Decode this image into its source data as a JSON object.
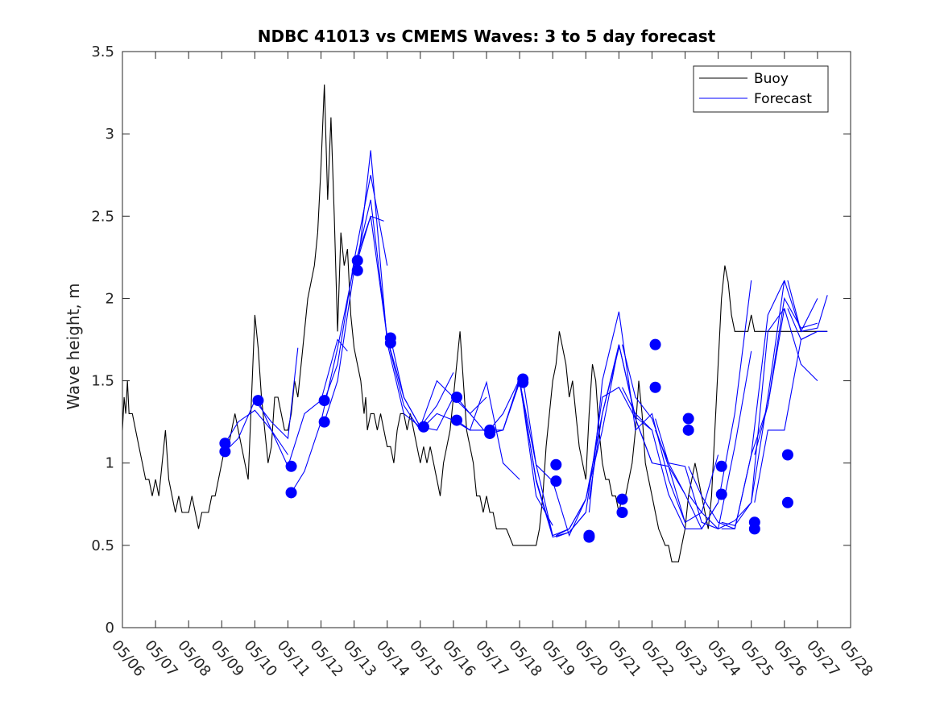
{
  "chart_data": {
    "type": "line",
    "title": "NDBC 41013 vs CMEMS Waves: 3 to 5 day forecast",
    "xlabel": "",
    "ylabel": "Wave height, m",
    "xlim": [
      0,
      22
    ],
    "ylim": [
      0,
      3.5
    ],
    "yticks": [
      0,
      0.5,
      1,
      1.5,
      2,
      2.5,
      3,
      3.5
    ],
    "ytick_labels": [
      "0",
      "0.5",
      "1",
      "1.5",
      "2",
      "2.5",
      "3",
      "3.5"
    ],
    "xtick_labels": [
      "05/06",
      "05/07",
      "05/08",
      "05/09",
      "05/10",
      "05/11",
      "05/12",
      "05/13",
      "05/14",
      "05/15",
      "05/16",
      "05/17",
      "05/18",
      "05/19",
      "05/20",
      "05/21",
      "05/22",
      "05/23",
      "05/24",
      "05/25",
      "05/26",
      "05/27",
      "05/28"
    ],
    "legend": {
      "placement": "top-right",
      "entries": [
        {
          "label": "Buoy",
          "color": "#000000"
        },
        {
          "label": "Forecast",
          "color": "#0000ff"
        }
      ]
    },
    "colors": {
      "buoy": "#000000",
      "forecast": "#0000ff",
      "marker": "#0000ff"
    },
    "series": [
      {
        "name": "Buoy",
        "x": [
          0,
          0.05,
          0.1,
          0.15,
          0.2,
          0.3,
          0.4,
          0.5,
          0.6,
          0.7,
          0.8,
          0.9,
          1.0,
          1.1,
          1.2,
          1.3,
          1.4,
          1.5,
          1.6,
          1.7,
          1.8,
          1.9,
          2.0,
          2.1,
          2.2,
          2.3,
          2.4,
          2.5,
          2.6,
          2.7,
          2.8,
          2.9,
          3.0,
          3.1,
          3.2,
          3.3,
          3.4,
          3.5,
          3.6,
          3.7,
          3.8,
          3.9,
          4.0,
          4.1,
          4.2,
          4.3,
          4.4,
          4.5,
          4.6,
          4.7,
          4.8,
          4.9,
          5.0,
          5.1,
          5.2,
          5.3,
          5.4,
          5.5,
          5.6,
          5.7,
          5.8,
          5.9,
          6.0,
          6.1,
          6.2,
          6.3,
          6.4,
          6.5,
          6.6,
          6.7,
          6.8,
          6.9,
          7.0,
          7.1,
          7.2,
          7.25,
          7.3,
          7.35,
          7.4,
          7.5,
          7.6,
          7.7,
          7.8,
          7.9,
          8.0,
          8.1,
          8.2,
          8.3,
          8.4,
          8.5,
          8.6,
          8.7,
          8.8,
          8.9,
          9.0,
          9.1,
          9.2,
          9.3,
          9.4,
          9.5,
          9.6,
          9.7,
          9.8,
          9.9,
          10.0,
          10.1,
          10.2,
          10.3,
          10.4,
          10.5,
          10.6,
          10.7,
          10.8,
          10.9,
          11.0,
          11.1,
          11.2,
          11.3,
          11.4,
          11.5,
          11.6,
          11.7,
          11.8,
          11.9,
          12.0,
          12.1,
          12.2,
          12.3,
          12.4,
          12.5,
          12.6,
          12.7,
          12.8,
          12.9,
          13.0,
          13.1,
          13.2,
          13.3,
          13.4,
          13.5,
          13.6,
          13.7,
          13.8,
          13.9,
          14.0,
          14.1,
          14.2,
          14.3,
          14.4,
          14.5,
          14.6,
          14.7,
          14.8,
          14.9,
          15.0,
          15.1,
          15.2,
          15.3,
          15.4,
          15.5,
          15.6,
          15.7,
          15.8,
          15.9,
          16.0,
          16.1,
          16.2,
          16.3,
          16.4,
          16.5,
          16.6,
          16.7,
          16.8,
          16.9,
          17.0,
          17.1,
          17.2,
          17.3,
          17.4,
          17.5,
          17.6,
          17.7,
          17.8,
          17.9,
          18.0,
          18.1,
          18.2,
          18.3,
          18.4,
          18.5,
          18.6,
          18.7,
          18.8,
          18.9,
          19.0,
          19.1,
          19.2,
          19.3,
          19.4,
          19.5,
          19.6,
          19.7,
          19.8,
          19.9,
          20.0,
          20.1,
          20.2,
          20.3,
          20.4,
          20.5,
          20.6,
          20.7,
          20.8,
          20.9,
          21.0,
          21.1,
          21.2,
          21.3
        ],
        "y": [
          1.2,
          1.4,
          1.3,
          1.5,
          1.3,
          1.3,
          1.2,
          1.1,
          1.0,
          0.9,
          0.9,
          0.8,
          0.9,
          0.8,
          1.0,
          1.2,
          0.9,
          0.8,
          0.7,
          0.8,
          0.7,
          0.7,
          0.7,
          0.8,
          0.7,
          0.6,
          0.7,
          0.7,
          0.7,
          0.8,
          0.8,
          0.9,
          1.0,
          1.1,
          1.1,
          1.2,
          1.3,
          1.2,
          1.1,
          1.0,
          0.9,
          1.4,
          1.9,
          1.7,
          1.4,
          1.2,
          1.0,
          1.1,
          1.4,
          1.4,
          1.3,
          1.2,
          1.2,
          1.3,
          1.5,
          1.4,
          1.6,
          1.8,
          2.0,
          2.1,
          2.2,
          2.4,
          2.8,
          3.3,
          2.6,
          3.1,
          2.5,
          1.8,
          2.4,
          2.2,
          2.3,
          1.9,
          1.7,
          1.6,
          1.5,
          1.4,
          1.3,
          1.4,
          1.2,
          1.3,
          1.3,
          1.2,
          1.3,
          1.2,
          1.1,
          1.1,
          1.0,
          1.2,
          1.3,
          1.3,
          1.2,
          1.3,
          1.2,
          1.1,
          1.0,
          1.1,
          1.0,
          1.1,
          1.0,
          0.9,
          0.8,
          1.0,
          1.1,
          1.2,
          1.4,
          1.6,
          1.8,
          1.5,
          1.2,
          1.1,
          1.0,
          0.8,
          0.8,
          0.7,
          0.8,
          0.7,
          0.7,
          0.6,
          0.6,
          0.6,
          0.6,
          0.55,
          0.5,
          0.5,
          0.5,
          0.5,
          0.5,
          0.5,
          0.5,
          0.5,
          0.6,
          0.8,
          1.1,
          1.3,
          1.5,
          1.6,
          1.8,
          1.7,
          1.6,
          1.4,
          1.5,
          1.3,
          1.1,
          1.0,
          0.9,
          1.3,
          1.6,
          1.5,
          1.2,
          1.0,
          0.9,
          0.9,
          0.8,
          0.8,
          0.7,
          0.8,
          0.8,
          0.9,
          1.0,
          1.2,
          1.5,
          1.3,
          1.0,
          0.9,
          0.8,
          0.7,
          0.6,
          0.55,
          0.5,
          0.5,
          0.4,
          0.4,
          0.4,
          0.5,
          0.6,
          0.8,
          0.9,
          1.0,
          0.9,
          0.8,
          0.7,
          0.6,
          0.8,
          1.2,
          1.6,
          2.0,
          2.2,
          2.1,
          1.9,
          1.8,
          1.8,
          1.8,
          1.8,
          1.8,
          1.9,
          1.8,
          1.8,
          1.8,
          1.8,
          1.8,
          1.8,
          1.8,
          1.8,
          1.8,
          1.8,
          1.8,
          1.8,
          1.8,
          1.8,
          1.8,
          1.8,
          1.8,
          1.8,
          1.8,
          1.8,
          1.8,
          1.8,
          1.8
        ]
      },
      {
        "name": "Forecast",
        "x": [
          3.1,
          3.5,
          4.0,
          4.5,
          5.0
        ],
        "y": [
          1.12,
          1.25,
          1.32,
          1.2,
          1.05
        ]
      },
      {
        "x": [
          3.1,
          3.5,
          4.0,
          4.5,
          5.0,
          5.3
        ],
        "y": [
          1.07,
          1.15,
          1.38,
          1.25,
          1.15,
          1.7
        ]
      },
      {
        "x": [
          4.1,
          4.5,
          5.0,
          5.5,
          6.0,
          6.5,
          6.8
        ],
        "y": [
          1.38,
          1.2,
          0.98,
          1.3,
          1.38,
          1.75,
          1.68
        ]
      },
      {
        "x": [
          5.1,
          5.5,
          6.0,
          6.5,
          7.0,
          7.5,
          7.9
        ],
        "y": [
          0.82,
          0.95,
          1.25,
          1.7,
          2.2,
          2.5,
          2.47
        ]
      },
      {
        "x": [
          6.1,
          6.5,
          7.0,
          7.5,
          8.0
        ],
        "y": [
          1.38,
          1.6,
          2.23,
          2.75,
          2.2
        ]
      },
      {
        "x": [
          6.1,
          6.5,
          7.0,
          7.5,
          8.0,
          8.5,
          9.0
        ],
        "y": [
          1.25,
          1.5,
          2.17,
          2.6,
          1.76,
          1.35,
          1.2
        ]
      },
      {
        "x": [
          7.1,
          7.5,
          8.0,
          8.5,
          9.0,
          9.5,
          10.0
        ],
        "y": [
          2.23,
          2.5,
          1.76,
          1.4,
          1.22,
          1.35,
          1.55
        ]
      },
      {
        "x": [
          7.1,
          7.5,
          8.0,
          8.5,
          9.0,
          9.5,
          10.0
        ],
        "y": [
          2.17,
          2.9,
          1.73,
          1.3,
          1.22,
          1.2,
          1.4
        ]
      },
      {
        "x": [
          8.1,
          8.5,
          9.0,
          9.5,
          10.0,
          10.5,
          11.0
        ],
        "y": [
          1.76,
          1.4,
          1.22,
          1.5,
          1.4,
          1.3,
          1.4
        ]
      },
      {
        "x": [
          9.1,
          9.5,
          10.0,
          10.5,
          11.0,
          11.5,
          12.0
        ],
        "y": [
          1.22,
          1.3,
          1.26,
          1.2,
          1.49,
          1.0,
          0.9
        ]
      },
      {
        "x": [
          10.1,
          10.5,
          11.0,
          11.5,
          12.0,
          12.5,
          13.0
        ],
        "y": [
          1.4,
          1.3,
          1.18,
          1.3,
          1.51,
          0.8,
          0.62
        ]
      },
      {
        "x": [
          10.1,
          10.5,
          11.0,
          11.5,
          12.0,
          12.5,
          13.0
        ],
        "y": [
          1.26,
          1.2,
          1.2,
          1.2,
          1.49,
          0.9,
          0.56
        ]
      },
      {
        "x": [
          11.1,
          11.5,
          12.0,
          12.5,
          13.0,
          13.5,
          14.0
        ],
        "y": [
          1.2,
          1.2,
          1.5,
          0.99,
          0.56,
          0.6,
          0.78
        ]
      },
      {
        "x": [
          11.1,
          11.5,
          12.0,
          12.5,
          13.0,
          13.5,
          14.0
        ],
        "y": [
          1.18,
          1.2,
          1.51,
          0.89,
          0.55,
          0.58,
          0.7
        ]
      },
      {
        "x": [
          12.1,
          12.5,
          13.0,
          13.5,
          14.0,
          14.5,
          15.0
        ],
        "y": [
          1.51,
          0.99,
          0.89,
          0.56,
          0.78,
          1.3,
          1.7
        ]
      },
      {
        "x": [
          13.1,
          13.5,
          14.0,
          14.5,
          15.0,
          15.5,
          16.0
        ],
        "y": [
          0.56,
          0.6,
          0.78,
          1.2,
          1.72,
          1.28,
          1.2
        ]
      },
      {
        "x": [
          13.1,
          13.5,
          14.0,
          14.5,
          15.0,
          15.5,
          16.0
        ],
        "y": [
          0.55,
          0.58,
          0.7,
          1.4,
          1.46,
          1.27,
          1.0
        ]
      },
      {
        "x": [
          14.1,
          14.5,
          15.0,
          15.5,
          16.0,
          16.5,
          17.0
        ],
        "y": [
          0.78,
          1.3,
          1.72,
          1.27,
          1.0,
          0.98,
          0.81
        ]
      },
      {
        "x": [
          14.1,
          14.5,
          15.0,
          15.5,
          16.0,
          16.5,
          17.0
        ],
        "y": [
          0.7,
          1.5,
          1.92,
          1.2,
          1.3,
          0.9,
          0.64
        ]
      },
      {
        "x": [
          15.1,
          15.5,
          16.0,
          16.5,
          17.0,
          17.5,
          18.0
        ],
        "y": [
          1.72,
          1.4,
          1.27,
          0.98,
          0.64,
          0.7,
          1.05
        ]
      },
      {
        "x": [
          15.1,
          15.5,
          16.0,
          16.5,
          17.0,
          17.5,
          18.0
        ],
        "y": [
          1.46,
          1.3,
          1.2,
          0.81,
          0.6,
          0.6,
          0.76
        ]
      },
      {
        "x": [
          16.1,
          16.5,
          17.0,
          17.5,
          18.0,
          18.5,
          19.0
        ],
        "y": [
          1.27,
          1.0,
          0.98,
          0.64,
          0.6,
          1.1,
          1.68
        ]
      },
      {
        "x": [
          16.1,
          16.5,
          17.0,
          17.5,
          18.0,
          18.5,
          19.0
        ],
        "y": [
          1.2,
          1.0,
          0.81,
          0.6,
          0.76,
          1.3,
          2.11
        ]
      },
      {
        "x": [
          17.1,
          17.5,
          18.0,
          18.5,
          19.0,
          19.5,
          20.0
        ],
        "y": [
          0.98,
          0.8,
          0.64,
          0.6,
          1.05,
          1.9,
          2.11
        ]
      },
      {
        "x": [
          17.1,
          17.5,
          18.0,
          18.5,
          19.0,
          19.5,
          20.0
        ],
        "y": [
          0.81,
          0.7,
          0.6,
          0.65,
          0.76,
          1.8,
          1.94
        ]
      },
      {
        "x": [
          18.1,
          18.5,
          19.0,
          19.5,
          20.0,
          20.5,
          21.0
        ],
        "y": [
          0.64,
          0.62,
          0.76,
          1.4,
          2.11,
          1.8,
          2.0
        ]
      },
      {
        "x": [
          18.1,
          18.5,
          19.0,
          19.5,
          20.0,
          20.5,
          21.0
        ],
        "y": [
          0.6,
          0.6,
          1.05,
          1.35,
          1.94,
          1.6,
          1.5
        ]
      },
      {
        "x": [
          19.1,
          19.5,
          20.0,
          20.5,
          21.0
        ],
        "y": [
          1.05,
          1.35,
          2.0,
          1.82,
          1.85
        ]
      },
      {
        "x": [
          19.1,
          19.5,
          20.0,
          20.5,
          21.0
        ],
        "y": [
          0.76,
          1.2,
          1.2,
          1.75,
          1.8
        ]
      },
      {
        "x": [
          20.1,
          20.5,
          21.0,
          21.3
        ],
        "y": [
          2.11,
          1.8,
          1.82,
          2.02
        ]
      },
      {
        "x": [
          20.1,
          20.5,
          21.0,
          21.3
        ],
        "y": [
          1.94,
          1.75,
          1.8,
          1.8
        ]
      }
    ],
    "markers": {
      "x": [
        3.1,
        3.1,
        4.1,
        5.1,
        5.1,
        6.1,
        6.1,
        7.1,
        7.1,
        8.1,
        8.1,
        9.1,
        10.1,
        10.1,
        11.1,
        11.1,
        12.1,
        12.1,
        13.1,
        13.1,
        14.1,
        14.1,
        15.1,
        15.1,
        16.1,
        16.1,
        17.1,
        17.1,
        18.1,
        18.1,
        19.1,
        19.1,
        20.1,
        20.1
      ],
      "y": [
        1.12,
        1.07,
        1.38,
        0.98,
        0.82,
        1.38,
        1.25,
        2.23,
        2.17,
        1.76,
        1.73,
        1.22,
        1.4,
        1.26,
        1.2,
        1.18,
        1.51,
        1.49,
        0.99,
        0.89,
        0.56,
        0.55,
        0.78,
        0.7,
        1.72,
        1.46,
        1.27,
        1.2,
        0.98,
        0.81,
        0.64,
        0.6,
        1.05,
        0.76
      ]
    }
  }
}
